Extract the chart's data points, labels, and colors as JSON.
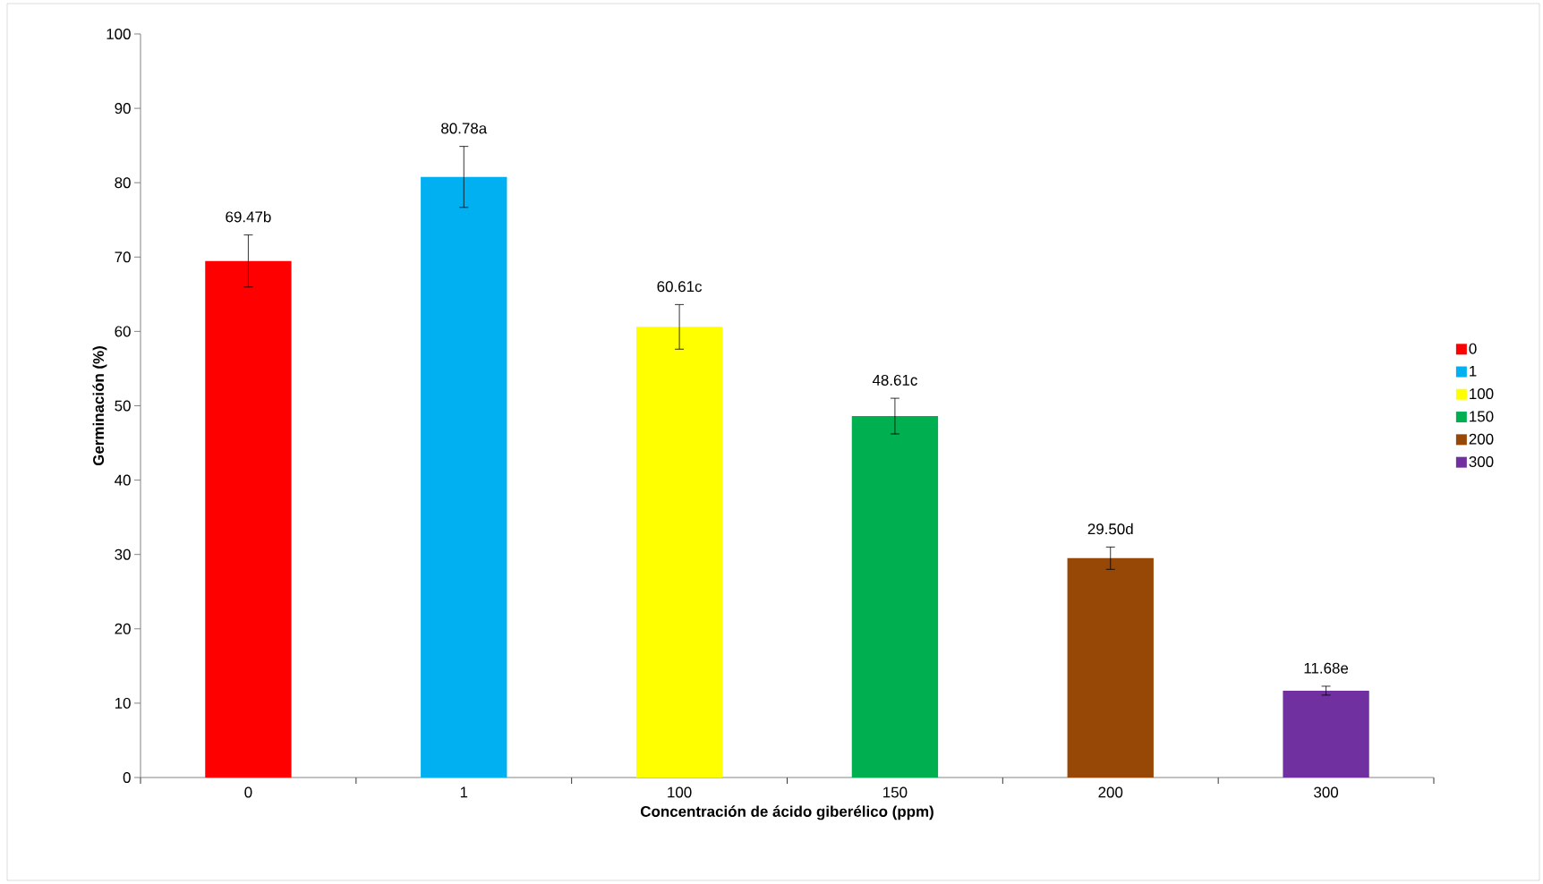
{
  "chart_data": {
    "type": "bar",
    "xlabel": "Concentración de ácido giberélico (ppm)",
    "ylabel": "Germinación (%)",
    "categories": [
      "0",
      "1",
      "100",
      "150",
      "200",
      "300"
    ],
    "series": [
      {
        "name": "0",
        "color": "#ff0000",
        "values": [
          69.47,
          null,
          null,
          null,
          null,
          null
        ],
        "errors": [
          3.5,
          null,
          null,
          null,
          null,
          null
        ],
        "value_labels": [
          "69.47b",
          null,
          null,
          null,
          null,
          null
        ]
      },
      {
        "name": "1",
        "color": "#00b0f0",
        "values": [
          null,
          80.78,
          null,
          null,
          null,
          null
        ],
        "errors": [
          null,
          4.1,
          null,
          null,
          null,
          null
        ],
        "value_labels": [
          null,
          "80.78a",
          null,
          null,
          null,
          null
        ]
      },
      {
        "name": "100",
        "color": "#ffff00",
        "values": [
          null,
          null,
          60.61,
          null,
          null,
          null
        ],
        "errors": [
          null,
          null,
          3.0,
          null,
          null,
          null
        ],
        "value_labels": [
          null,
          null,
          "60.61c",
          null,
          null,
          null
        ]
      },
      {
        "name": "150",
        "color": "#00b050",
        "values": [
          null,
          null,
          null,
          48.61,
          null,
          null
        ],
        "errors": [
          null,
          null,
          null,
          2.4,
          null,
          null
        ],
        "value_labels": [
          null,
          null,
          null,
          "48.61c",
          null,
          null
        ]
      },
      {
        "name": "200",
        "color": "#974706",
        "values": [
          null,
          null,
          null,
          null,
          29.5,
          null
        ],
        "errors": [
          null,
          null,
          null,
          null,
          1.5,
          null
        ],
        "value_labels": [
          null,
          null,
          null,
          null,
          "29.50d",
          null
        ]
      },
      {
        "name": "300",
        "color": "#7030a0",
        "values": [
          null,
          null,
          null,
          null,
          null,
          11.68
        ],
        "errors": [
          null,
          null,
          null,
          null,
          null,
          0.6
        ],
        "value_labels": [
          null,
          null,
          null,
          null,
          null,
          "11.68e"
        ]
      }
    ],
    "ylim": [
      0,
      100
    ],
    "yticks": [
      0,
      10,
      20,
      30,
      40,
      50,
      60,
      70,
      80,
      90,
      100
    ],
    "grid": false,
    "legend": "right"
  }
}
